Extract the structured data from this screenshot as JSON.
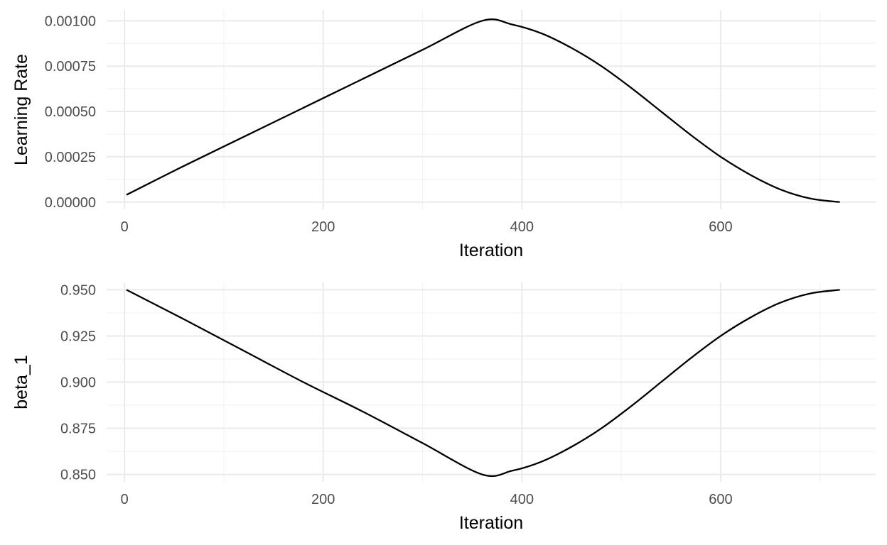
{
  "chart_data": [
    {
      "type": "line",
      "title": "",
      "xlabel": "Iteration",
      "ylabel": "Learning Rate",
      "xlim": [
        -18,
        756
      ],
      "ylim": [
        -4e-05,
        0.00106
      ],
      "x_ticks": [
        0,
        200,
        400,
        600
      ],
      "x_tick_labels": [
        "0",
        "200",
        "400",
        "600"
      ],
      "x_minor_ticks": [
        100,
        300,
        500,
        700
      ],
      "y_ticks": [
        0,
        0.00025,
        0.0005,
        0.00075,
        0.001
      ],
      "y_tick_labels": [
        "0.00000",
        "0.00025",
        "0.00050",
        "0.00075",
        "0.00100"
      ],
      "y_minor_ticks": [
        0.000125,
        0.000375,
        0.000625,
        0.000875
      ],
      "grid": true,
      "series": [
        {
          "x": [
            2,
            60,
            120,
            180,
            240,
            300,
            360,
            390,
            420,
            450,
            480,
            510,
            540,
            570,
            600,
            630,
            660,
            690,
            720
          ],
          "y": [
            4e-05,
            0.0002,
            0.00036,
            0.00052,
            0.00068,
            0.00084,
            0.001,
            0.00098,
            0.00093,
            0.00085,
            0.00075,
            0.00063,
            0.0005,
            0.00037,
            0.00025,
            0.00015,
            7e-05,
            2e-05,
            0.0
          ]
        }
      ]
    },
    {
      "type": "line",
      "title": "",
      "xlabel": "Iteration",
      "ylabel": "beta_1",
      "xlim": [
        -18,
        756
      ],
      "ylim": [
        0.846,
        0.954
      ],
      "x_ticks": [
        0,
        200,
        400,
        600
      ],
      "x_tick_labels": [
        "0",
        "200",
        "400",
        "600"
      ],
      "x_minor_ticks": [
        100,
        300,
        500,
        700
      ],
      "y_ticks": [
        0.85,
        0.875,
        0.9,
        0.925,
        0.95
      ],
      "y_tick_labels": [
        "0.850",
        "0.875",
        "0.900",
        "0.925",
        "0.950"
      ],
      "y_minor_ticks": [
        0.8625,
        0.8875,
        0.9125,
        0.9375
      ],
      "grid": true,
      "series": [
        {
          "x": [
            2,
            60,
            120,
            180,
            240,
            300,
            360,
            390,
            420,
            450,
            480,
            510,
            540,
            570,
            600,
            630,
            660,
            690,
            720
          ],
          "y": [
            0.95,
            0.934,
            0.917,
            0.9,
            0.884,
            0.867,
            0.85,
            0.852,
            0.857,
            0.865,
            0.875,
            0.887,
            0.9,
            0.913,
            0.925,
            0.935,
            0.943,
            0.948,
            0.95
          ]
        }
      ]
    }
  ]
}
